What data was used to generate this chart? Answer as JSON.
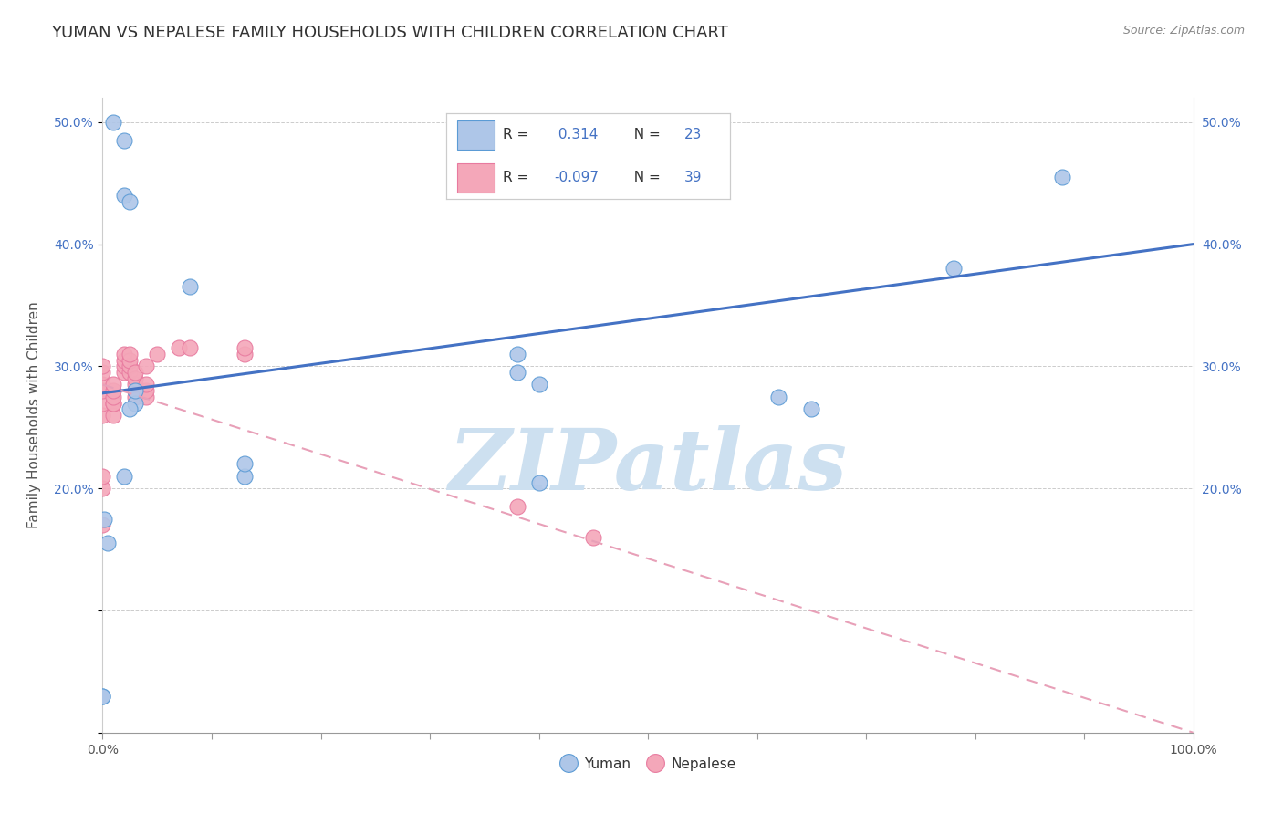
{
  "title": "YUMAN VS NEPALESE FAMILY HOUSEHOLDS WITH CHILDREN CORRELATION CHART",
  "source": "Source: ZipAtlas.com",
  "ylabel": "Family Households with Children",
  "yuman_x": [
    0.001,
    0.005,
    0.02,
    0.025,
    0.03,
    0.03,
    0.08,
    0.02,
    0.025,
    0.13,
    0.13,
    0.38,
    0.62,
    0.65,
    0.78,
    0.88,
    0.02,
    0.01,
    0.0,
    0.0,
    0.4,
    0.38,
    0.4
  ],
  "yuman_y": [
    0.175,
    0.155,
    0.44,
    0.435,
    0.27,
    0.28,
    0.365,
    0.21,
    0.265,
    0.21,
    0.22,
    0.31,
    0.275,
    0.265,
    0.38,
    0.455,
    0.485,
    0.5,
    0.03,
    0.03,
    0.285,
    0.295,
    0.205
  ],
  "nepalese_x": [
    0.0,
    0.0,
    0.0,
    0.0,
    0.0,
    0.0,
    0.0,
    0.0,
    0.0,
    0.01,
    0.01,
    0.01,
    0.01,
    0.01,
    0.01,
    0.02,
    0.02,
    0.02,
    0.02,
    0.025,
    0.025,
    0.025,
    0.025,
    0.03,
    0.03,
    0.03,
    0.03,
    0.03,
    0.04,
    0.04,
    0.04,
    0.04,
    0.05,
    0.07,
    0.08,
    0.13,
    0.13,
    0.38,
    0.45
  ],
  "nepalese_y": [
    0.2,
    0.21,
    0.26,
    0.27,
    0.28,
    0.285,
    0.295,
    0.3,
    0.17,
    0.26,
    0.27,
    0.27,
    0.275,
    0.28,
    0.285,
    0.295,
    0.3,
    0.305,
    0.31,
    0.295,
    0.3,
    0.305,
    0.31,
    0.275,
    0.28,
    0.285,
    0.29,
    0.295,
    0.275,
    0.28,
    0.285,
    0.3,
    0.31,
    0.315,
    0.315,
    0.31,
    0.315,
    0.185,
    0.16
  ],
  "yuman_color": "#aec6e8",
  "nepalese_color": "#f4a7b9",
  "yuman_edge_color": "#5b9bd5",
  "nepalese_edge_color": "#e87a9f",
  "yuman_line_color": "#4472c4",
  "nepalese_line_color": "#e8a0b8",
  "legend_yuman_R": "0.314",
  "legend_yuman_N": "23",
  "legend_nepalese_R": "-0.097",
  "legend_nepalese_N": "39",
  "yuman_trend_intercept": 0.278,
  "yuman_trend_slope": 0.122,
  "nepalese_trend_intercept": 0.285,
  "nepalese_trend_slope": -0.285,
  "xlim": [
    0.0,
    1.0
  ],
  "ylim": [
    0.0,
    0.52
  ],
  "xticks": [
    0.0,
    0.1,
    0.2,
    0.3,
    0.4,
    0.5,
    0.6,
    0.7,
    0.8,
    0.9,
    1.0
  ],
  "yticks": [
    0.0,
    0.1,
    0.2,
    0.3,
    0.4,
    0.5
  ],
  "background_color": "#ffffff",
  "watermark_text": "ZIPatlas",
  "watermark_color": "#cde0f0",
  "title_fontsize": 13,
  "axis_label_fontsize": 11,
  "tick_fontsize": 10,
  "legend_fontsize": 11,
  "source_fontsize": 9,
  "r_value_color": "#4472c4"
}
